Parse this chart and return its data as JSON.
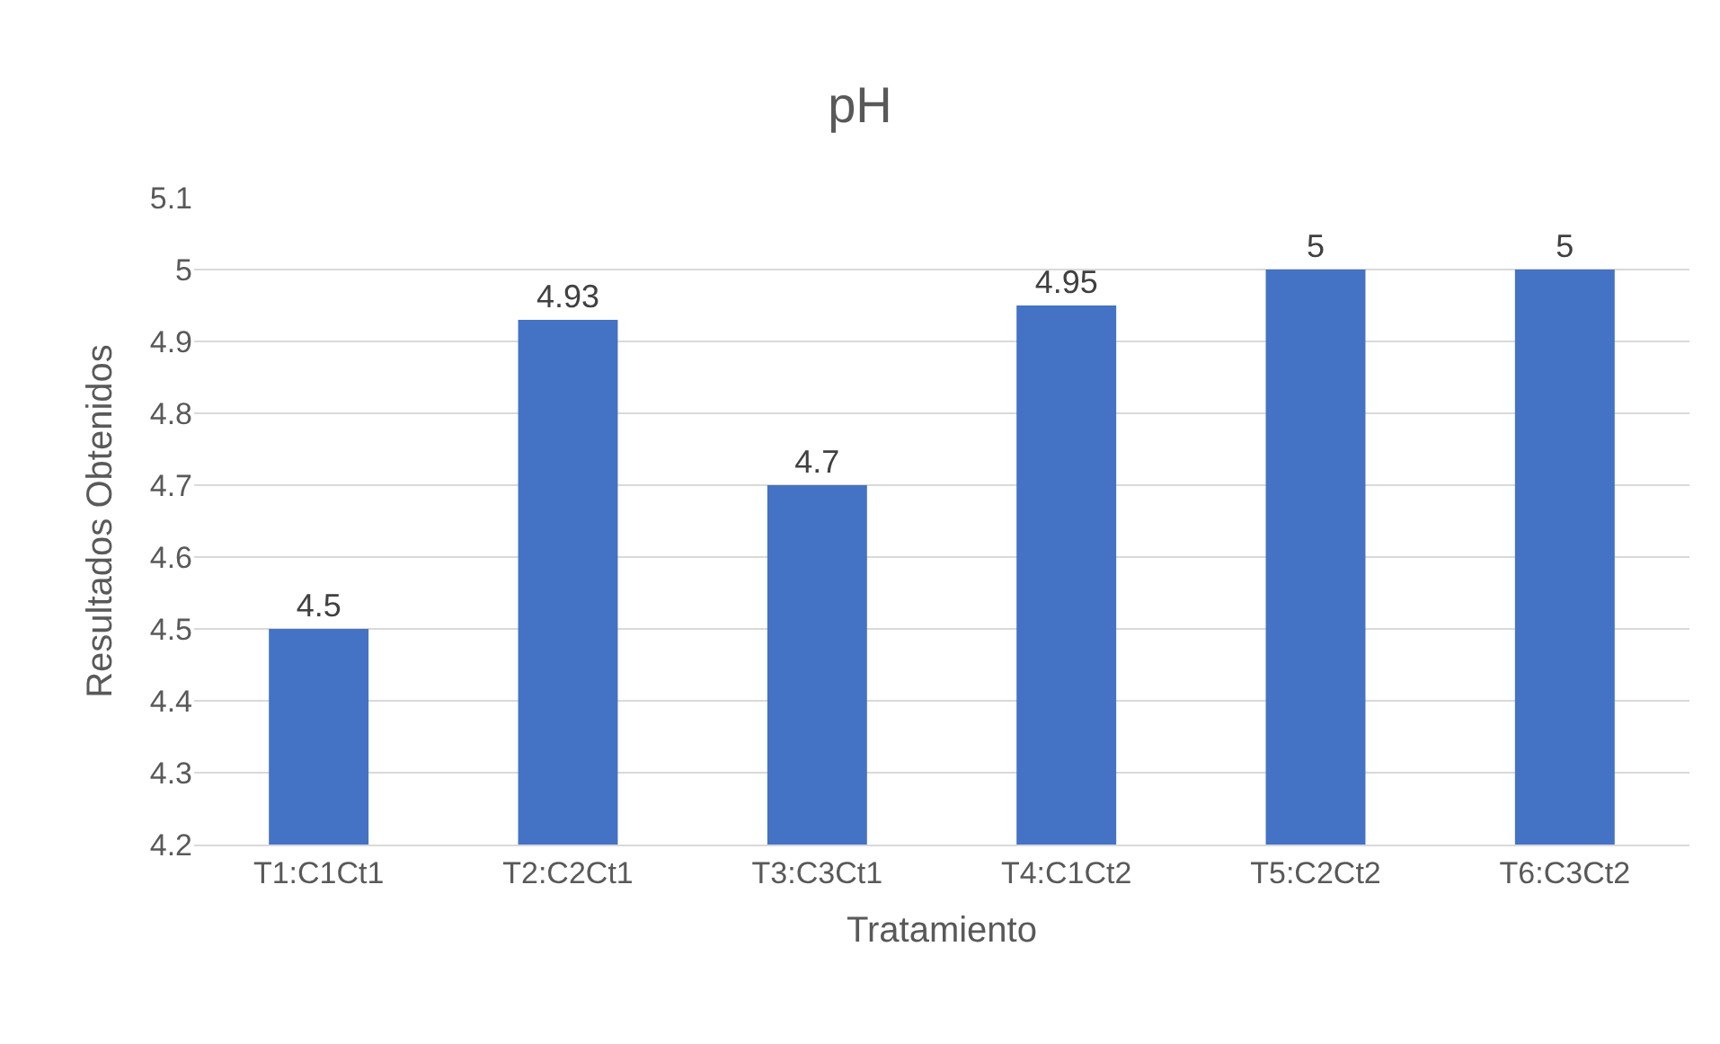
{
  "chart_data": {
    "type": "bar",
    "title": "pH",
    "xlabel": "Tratamiento",
    "ylabel": "Resultados Obtenidos",
    "categories": [
      "T1:C1Ct1",
      "T2:C2Ct1",
      "T3:C3Ct1",
      "T4:C1Ct2",
      "T5:C2Ct2",
      "T6:C3Ct2"
    ],
    "values": [
      4.5,
      4.93,
      4.7,
      4.95,
      5,
      5
    ],
    "color": "#4472c4",
    "ylim": [
      4.2,
      5.1
    ],
    "yticks": [
      4.2,
      4.3,
      4.4,
      4.5,
      4.6,
      4.7,
      4.8,
      4.9,
      5,
      5.1
    ],
    "grid": "y",
    "data_labels": true,
    "legend": false
  }
}
